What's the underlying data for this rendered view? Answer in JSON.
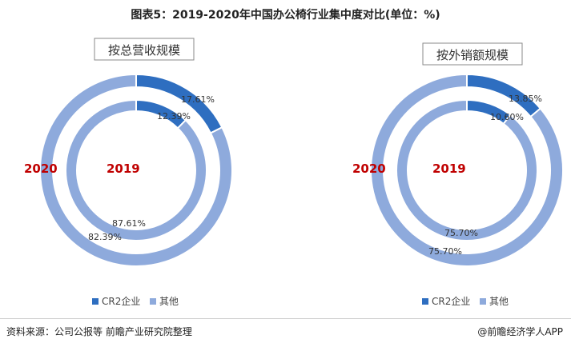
{
  "title": "图表5：2019-2020年中国办公椅行业集中度对比(单位：%)",
  "colors": {
    "cr2": "#2e6ec0",
    "other": "#8eaadc",
    "year": "#c00000",
    "box_border": "#8a8a8a"
  },
  "chart_data": [
    {
      "type": "pie",
      "title": "按总营收规模",
      "series": [
        {
          "name": "2020",
          "values": [
            17.61,
            82.39
          ]
        },
        {
          "name": "2019",
          "values": [
            12.39,
            87.61
          ]
        }
      ],
      "categories": [
        "CR2企业",
        "其他"
      ],
      "data_labels": {
        "outer": [
          "17.61%",
          "82.39%"
        ],
        "inner": [
          "12.39%",
          "87.61%"
        ]
      },
      "legend": {
        "position": "bottom",
        "items": [
          "CR2企业",
          "其他"
        ]
      }
    },
    {
      "type": "pie",
      "title": "按外销额规模",
      "series": [
        {
          "name": "2020",
          "values": [
            13.85,
            75.7
          ]
        },
        {
          "name": "2019",
          "values": [
            10.6,
            75.7
          ]
        }
      ],
      "categories": [
        "CR2企业",
        "其他"
      ],
      "data_labels": {
        "outer": [
          "13.85%",
          "75.70%"
        ],
        "inner": [
          "10.60%",
          "75.70%"
        ]
      },
      "legend": {
        "position": "bottom",
        "items": [
          "CR2企业",
          "其他"
        ]
      }
    }
  ],
  "footer": {
    "source": "资料来源：公司公报等 前瞻产业研究院整理",
    "brand": "@前瞻经济学人APP"
  }
}
